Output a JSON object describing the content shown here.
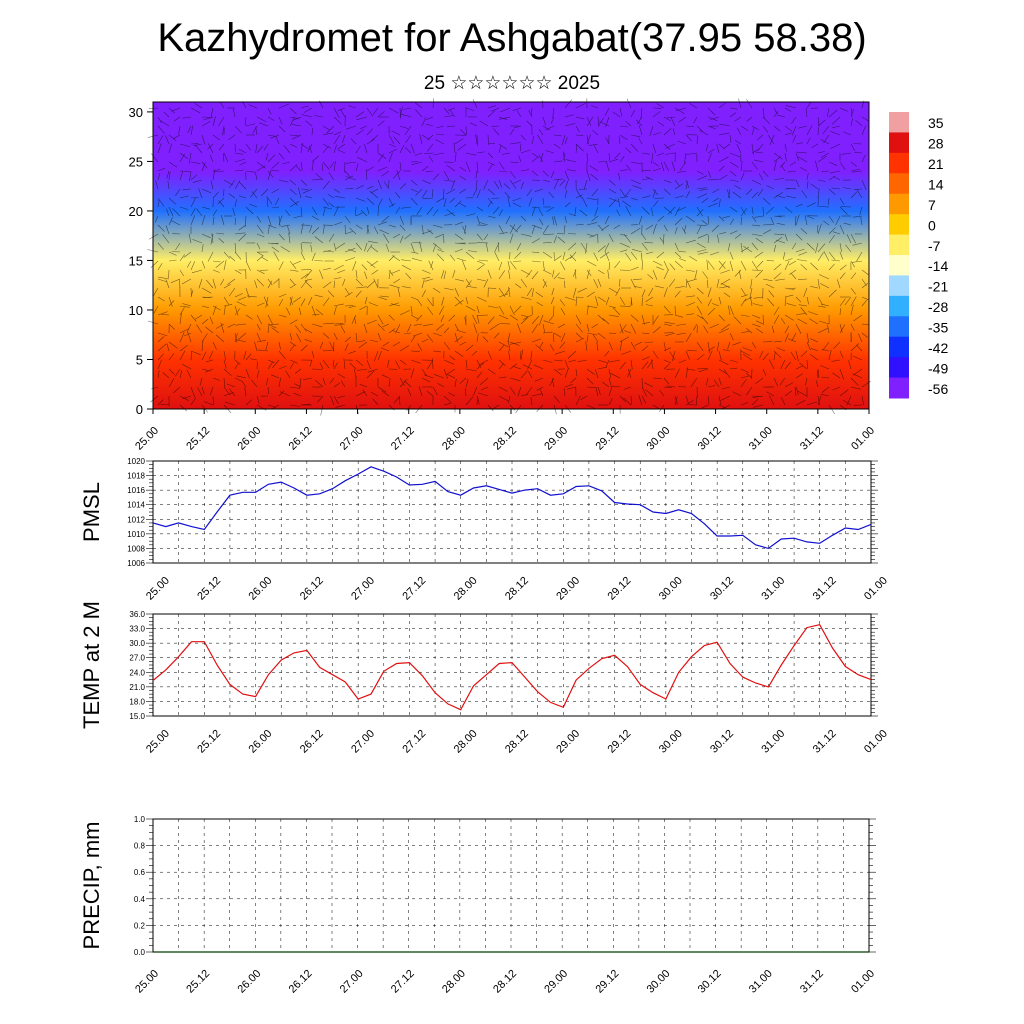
{
  "title": "Kazhydromet for Ashgabat(37.95 58.38)",
  "subtitle": "25 ☆☆☆☆☆☆ 2025",
  "x_tick_labels": [
    "25.00",
    "25.12",
    "26.00",
    "26.12",
    "27.00",
    "27.12",
    "28.00",
    "28.12",
    "29.00",
    "29.12",
    "30.00",
    "30.12",
    "31.00",
    "31.12",
    "01.00"
  ],
  "colors": {
    "pmsl_line": "#1010d0",
    "temp_line": "#e01010",
    "precip_line": "#004000"
  },
  "chart_data": [
    {
      "type": "heatmap",
      "title": "",
      "ylabel": "",
      "ylim": [
        0,
        31
      ],
      "y_ticks": [
        0,
        5,
        10,
        15,
        20,
        25,
        30
      ],
      "colorbar_labels": [
        "35",
        "28",
        "21",
        "14",
        "7",
        "0",
        "-7",
        "-14",
        "-21",
        "-28",
        "-35",
        "-42",
        "-49",
        "-56"
      ],
      "colorbar_colors": [
        "#f0a0a0",
        "#e01010",
        "#ff3300",
        "#ff6600",
        "#ff9900",
        "#ffcc00",
        "#ffee66",
        "#ffffcc",
        "#a0d8ff",
        "#30b0ff",
        "#2070ff",
        "#1030ff",
        "#3010ff",
        "#8020ff"
      ],
      "description_levels": [
        {
          "height": 0,
          "value": 25
        },
        {
          "height": 5,
          "value": 18
        },
        {
          "height": 10,
          "value": 8
        },
        {
          "height": 15,
          "value": -10
        },
        {
          "height": 20,
          "value": -35
        },
        {
          "height": 24,
          "value": -56
        },
        {
          "height": 31,
          "value": -56
        }
      ]
    },
    {
      "type": "line",
      "ylabel": "PMSL",
      "ylim": [
        1006,
        1020
      ],
      "y_ticks": [
        "1006",
        "1008",
        "1010",
        "1012",
        "1014",
        "1016",
        "1018",
        "1020"
      ],
      "x": [
        0,
        1,
        2,
        3,
        4,
        5,
        6,
        7,
        8,
        9,
        10,
        11,
        12,
        13,
        14,
        15,
        16,
        17,
        18,
        19,
        20,
        21,
        22,
        23,
        24,
        25,
        26,
        27,
        28,
        29,
        30,
        31,
        32,
        33,
        34,
        35,
        36,
        37,
        38,
        39,
        40,
        41,
        42,
        43,
        44,
        45,
        46,
        47,
        48,
        49,
        50,
        51,
        52,
        53,
        54,
        55,
        56
      ],
      "values": [
        1011.5,
        1011,
        1011.5,
        1011,
        1010.6,
        1013,
        1015.3,
        1015.7,
        1015.7,
        1016.8,
        1017.1,
        1016.3,
        1015.3,
        1015.5,
        1016.2,
        1017.3,
        1018.2,
        1019.2,
        1018.6,
        1017.8,
        1016.7,
        1016.8,
        1017.2,
        1015.8,
        1015.3,
        1016.3,
        1016.6,
        1016.1,
        1015.6,
        1016,
        1016.2,
        1015.3,
        1015.5,
        1016.5,
        1016.6,
        1015.9,
        1014.3,
        1014.1,
        1014,
        1013,
        1012.8,
        1013.3,
        1012.8,
        1011.4,
        1009.7,
        1009.7,
        1009.8,
        1008.5,
        1008,
        1009.3,
        1009.4,
        1008.9,
        1008.7,
        1009.8,
        1010.8,
        1010.6,
        1011.3
      ]
    },
    {
      "type": "line",
      "ylabel": "TEMP at 2 M",
      "ylim": [
        15,
        36
      ],
      "y_ticks": [
        "15.0",
        "18.0",
        "21.0",
        "24.0",
        "27.0",
        "30.0",
        "33.0",
        "36.0"
      ],
      "x": [
        0,
        1,
        2,
        3,
        4,
        5,
        6,
        7,
        8,
        9,
        10,
        11,
        12,
        13,
        14,
        15,
        16,
        17,
        18,
        19,
        20,
        21,
        22,
        23,
        24,
        25,
        26,
        27,
        28,
        29,
        30,
        31,
        32,
        33,
        34,
        35,
        36,
        37,
        38,
        39,
        40,
        41,
        42,
        43,
        44,
        45,
        46,
        47,
        48,
        49,
        50,
        51,
        52,
        53,
        54,
        55,
        56
      ],
      "values": [
        22.3,
        24.5,
        27.2,
        30.3,
        30.3,
        25.5,
        21.5,
        19.5,
        19,
        23.5,
        26.5,
        28,
        28.5,
        25,
        23.5,
        22,
        18.5,
        19.5,
        24.2,
        25.8,
        26,
        23.3,
        19.8,
        17.5,
        16.3,
        21.2,
        23.5,
        25.8,
        26,
        23,
        20,
        17.8,
        16.8,
        22.4,
        24.8,
        26.8,
        27.5,
        25.2,
        21.5,
        19.8,
        18.5,
        24,
        27.2,
        29.5,
        30.2,
        25.8,
        23,
        21.8,
        21,
        25.5,
        29.5,
        33.2,
        33.8,
        29,
        25.2,
        23.5,
        22.5
      ]
    },
    {
      "type": "line",
      "ylabel": "PRECIP, mm",
      "ylim": [
        0,
        1
      ],
      "y_ticks": [
        "0.0",
        "0.2",
        "0.4",
        "0.6",
        "0.8",
        "1.0"
      ],
      "x": [
        0,
        56
      ],
      "values": [
        0,
        0
      ]
    }
  ]
}
